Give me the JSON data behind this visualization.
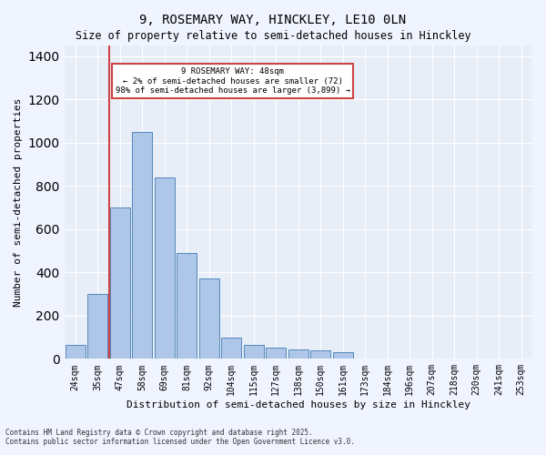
{
  "title1": "9, ROSEMARY WAY, HINCKLEY, LE10 0LN",
  "title2": "Size of property relative to semi-detached houses in Hinckley",
  "xlabel": "Distribution of semi-detached houses by size in Hinckley",
  "ylabel": "Number of semi-detached properties",
  "categories": [
    "24sqm",
    "35sqm",
    "47sqm",
    "58sqm",
    "69sqm",
    "81sqm",
    "92sqm",
    "104sqm",
    "115sqm",
    "127sqm",
    "138sqm",
    "150sqm",
    "161sqm",
    "173sqm",
    "184sqm",
    "196sqm",
    "207sqm",
    "218sqm",
    "230sqm",
    "241sqm",
    "253sqm"
  ],
  "values": [
    65,
    300,
    700,
    1050,
    840,
    490,
    370,
    100,
    65,
    50,
    45,
    40,
    30,
    0,
    0,
    0,
    0,
    0,
    0,
    0,
    0
  ],
  "bar_color": "#aec6e8",
  "bar_edge_color": "#5588bb",
  "highlight_bar_index": 1,
  "highlight_color": "#cc4444",
  "red_line_x": 1.5,
  "annotation_title": "9 ROSEMARY WAY: 48sqm",
  "annotation_line1": "← 2% of semi-detached houses are smaller (72)",
  "annotation_line2": "98% of semi-detached houses are larger (3,899) →",
  "footer1": "Contains HM Land Registry data © Crown copyright and database right 2025.",
  "footer2": "Contains public sector information licensed under the Open Government Licence v3.0.",
  "ylim": [
    0,
    1450
  ],
  "bg_color": "#f0f4ff",
  "plot_bg_color": "#e8eef8"
}
